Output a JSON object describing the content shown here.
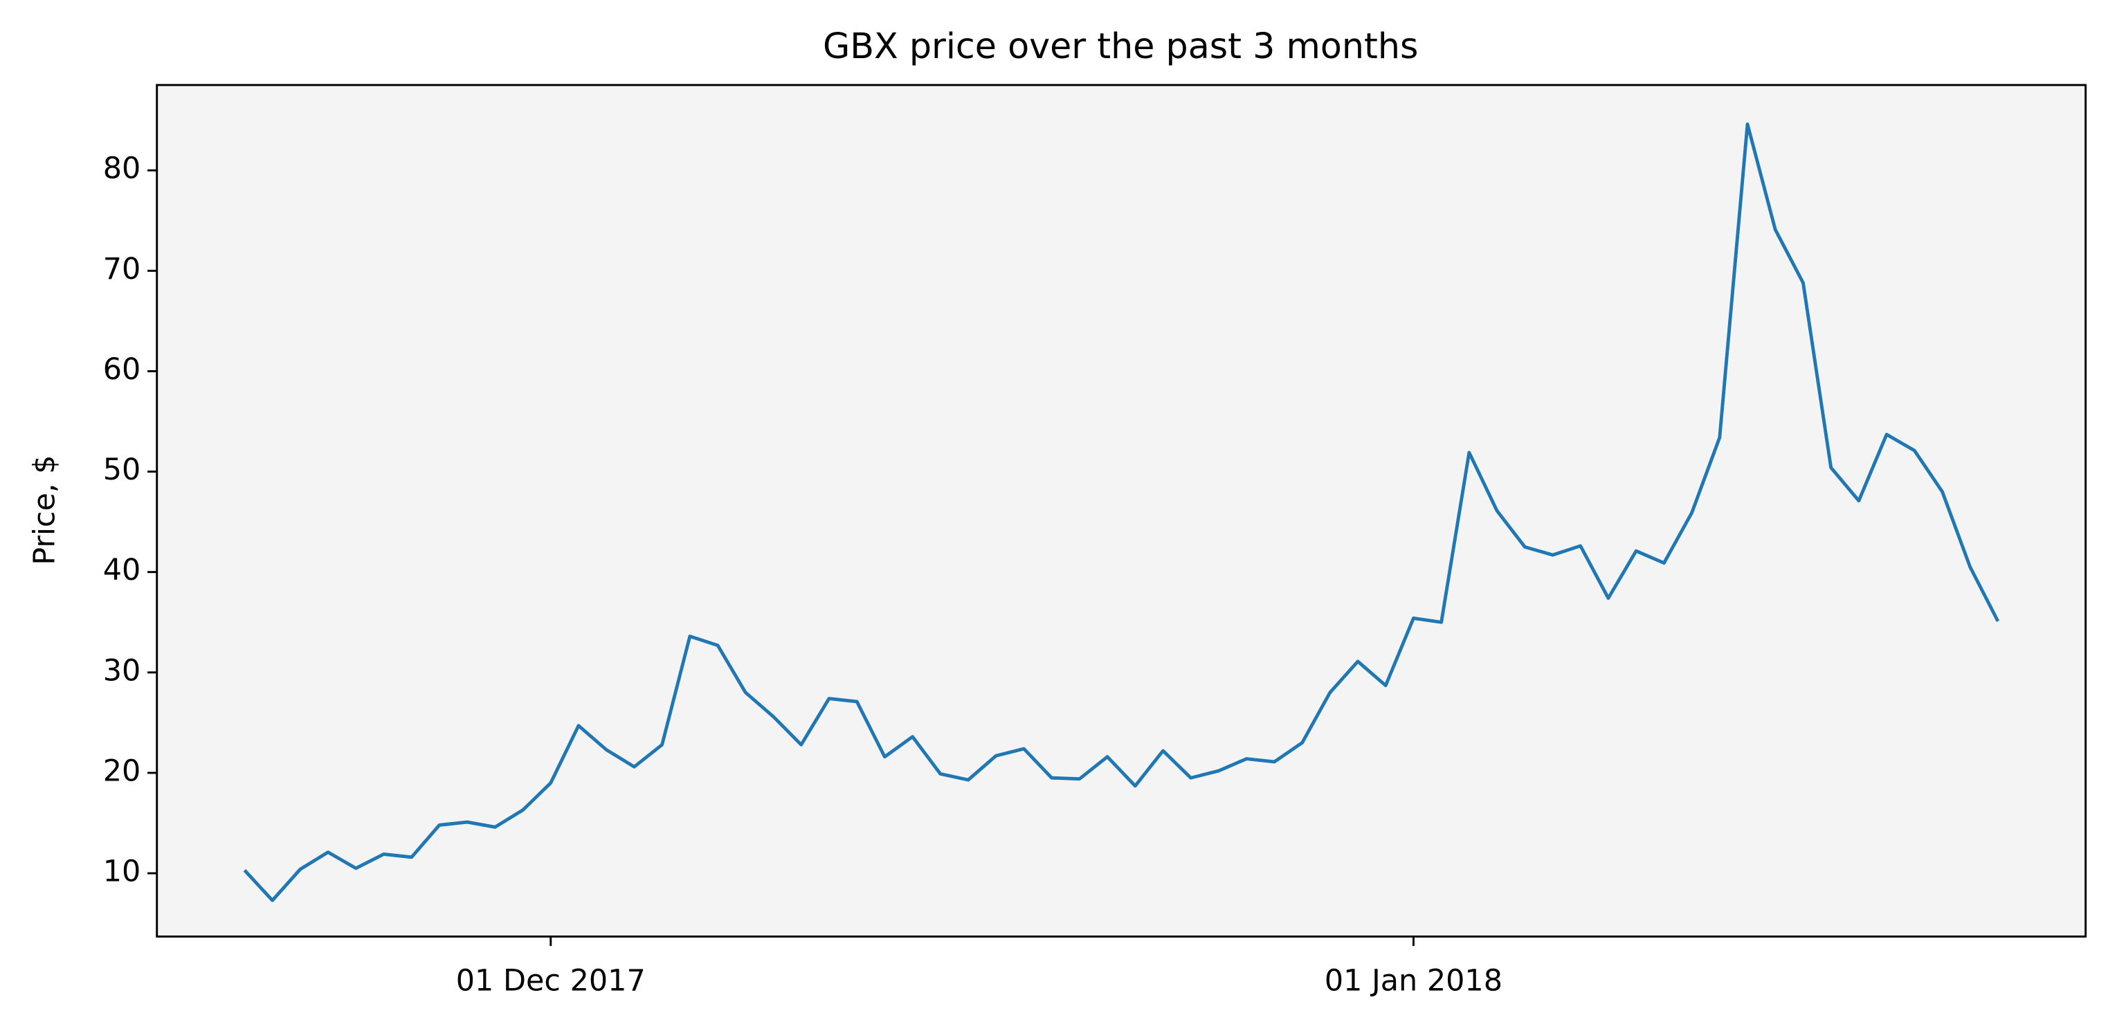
{
  "chart_data": {
    "type": "line",
    "title": "GBX price over the past 3 months",
    "ylabel": "Price, $",
    "x": [
      "2017-11-20",
      "2017-11-21",
      "2017-11-22",
      "2017-11-23",
      "2017-11-24",
      "2017-11-25",
      "2017-11-26",
      "2017-11-27",
      "2017-11-28",
      "2017-11-29",
      "2017-11-30",
      "2017-12-01",
      "2017-12-02",
      "2017-12-03",
      "2017-12-04",
      "2017-12-05",
      "2017-12-06",
      "2017-12-07",
      "2017-12-08",
      "2017-12-09",
      "2017-12-10",
      "2017-12-11",
      "2017-12-12",
      "2017-12-13",
      "2017-12-14",
      "2017-12-15",
      "2017-12-16",
      "2017-12-17",
      "2017-12-18",
      "2017-12-19",
      "2017-12-20",
      "2017-12-21",
      "2017-12-22",
      "2017-12-23",
      "2017-12-24",
      "2017-12-25",
      "2017-12-26",
      "2017-12-27",
      "2017-12-28",
      "2017-12-29",
      "2017-12-30",
      "2017-12-31",
      "2018-01-01",
      "2018-01-02",
      "2018-01-03",
      "2018-01-04",
      "2018-01-05",
      "2018-01-06",
      "2018-01-07",
      "2018-01-08",
      "2018-01-09",
      "2018-01-10",
      "2018-01-11",
      "2018-01-12",
      "2018-01-13",
      "2018-01-14",
      "2018-01-15",
      "2018-01-16",
      "2018-01-17",
      "2018-01-18",
      "2018-01-19",
      "2018-01-20",
      "2018-01-21",
      "2018-01-22"
    ],
    "series": [
      {
        "color": "#1f77b4",
        "values": [
          10.3,
          7.3,
          10.4,
          12.1,
          10.5,
          11.9,
          11.6,
          14.8,
          15.1,
          14.6,
          16.3,
          19.0,
          24.7,
          22.3,
          20.6,
          22.8,
          33.6,
          32.7,
          28.0,
          25.6,
          22.8,
          27.4,
          27.1,
          21.6,
          23.6,
          19.9,
          19.3,
          21.7,
          22.4,
          19.5,
          19.4,
          21.6,
          18.7,
          22.2,
          19.5,
          20.2,
          21.4,
          21.1,
          23.0,
          28.0,
          31.1,
          28.7,
          35.4,
          35.0,
          51.9,
          46.1,
          42.5,
          41.7,
          42.6,
          37.4,
          42.1,
          40.9,
          45.9,
          53.4,
          84.6,
          74.1,
          68.8,
          50.4,
          47.1,
          53.7,
          52.1,
          48.0,
          40.5,
          35.1
        ]
      }
    ],
    "xlim": [
      "2017-11-16T20:24Z",
      "2018-01-25T03:36Z"
    ],
    "xticks": [
      {
        "value": "2017-12-01",
        "label": "01 Dec 2017"
      },
      {
        "value": "2018-01-01",
        "label": "01 Jan 2018"
      }
    ],
    "ylim": [
      3.7,
      88.5
    ],
    "yticks": [
      10,
      20,
      30,
      40,
      50,
      60,
      70,
      80
    ],
    "background": "#f4f4f4"
  }
}
